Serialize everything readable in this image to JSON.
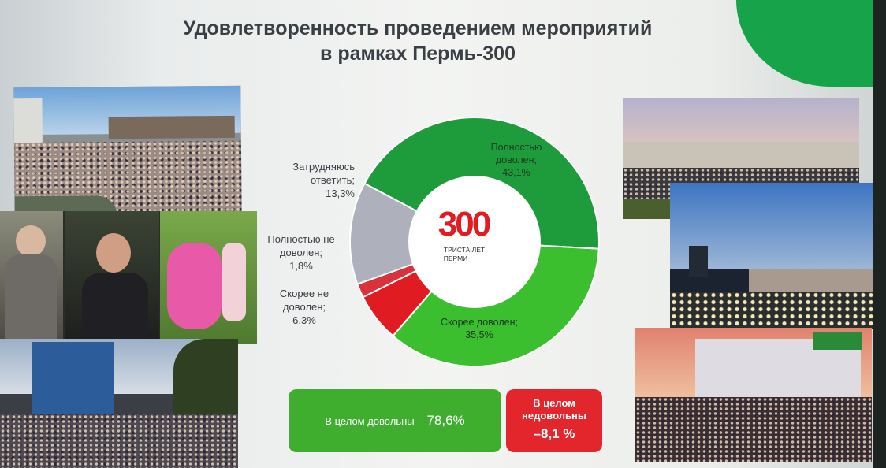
{
  "title": {
    "line1": "Удовлетворенность проведением мероприятий",
    "line2": "в рамках Пермь-300"
  },
  "logo": {
    "number": "300",
    "line1": "ТРИСТА ЛЕТ",
    "line2": "ПЕРМИ"
  },
  "chart_data": {
    "type": "pie",
    "categories": [
      "Полностью доволен",
      "Скорее доволен",
      "Скорее не доволен",
      "Полностью не доволен",
      "Затрудняюсь ответить"
    ],
    "values": [
      43.1,
      35.5,
      6.3,
      1.8,
      13.3
    ],
    "colors": [
      "#1e9c3c",
      "#3bbf2e",
      "#e11b22",
      "#d9323a",
      "#aeb0bc"
    ],
    "labels": [
      {
        "name": [
          "Полностью",
          "доволен;"
        ],
        "value": "43,1%"
      },
      {
        "name": [
          "Скорее доволен;"
        ],
        "value": "35,5%"
      },
      {
        "name": [
          "Скорее не",
          "доволен;"
        ],
        "value": "6,3%"
      },
      {
        "name": [
          "Полностью не",
          "доволен;"
        ],
        "value": "1,8%"
      },
      {
        "name": [
          "Затрудняюсь",
          "ответить;"
        ],
        "value": "13,3%"
      }
    ]
  },
  "summary": {
    "satisfied_text": "В целом довольны –",
    "satisfied_value": "78,6%",
    "unsatisfied_line1": "В целом",
    "unsatisfied_line2": "недовольны",
    "unsatisfied_value": "–8,1 %",
    "satisfied_color": "#3fae2e",
    "unsatisfied_color": "#e3262c"
  }
}
